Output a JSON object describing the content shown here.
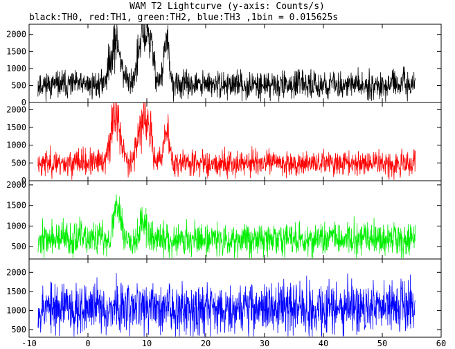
{
  "title": "WAM T2 Lightcurve (y-axis: Counts/s)",
  "subtitle": "black:TH0, red:TH1, green:TH2, blue:TH3 ,1bin = 0.015625s",
  "chart_data": [
    {
      "type": "line",
      "name": "TH0",
      "color": "#000000",
      "ylim": [
        0,
        2300
      ],
      "yticks": [
        0,
        500,
        1000,
        1500,
        2000
      ],
      "ytick_labels": [
        "0",
        "500",
        "1000",
        "1500",
        "2000"
      ],
      "x_range": [
        -8.5,
        55.6
      ],
      "baseline": 520,
      "noise": 190,
      "seed": 11,
      "bursts": [
        {
          "center": 4.7,
          "width": 0.9,
          "peak": 1250
        },
        {
          "center": 9.2,
          "width": 0.8,
          "peak": 1150
        },
        {
          "center": 10.5,
          "width": 0.7,
          "peak": 1050
        },
        {
          "center": 13.3,
          "width": 0.45,
          "peak": 1250
        }
      ]
    },
    {
      "type": "line",
      "name": "TH1",
      "color": "#ff0000",
      "ylim": [
        0,
        2200
      ],
      "yticks": [
        0,
        500,
        1000,
        1500,
        2000
      ],
      "ytick_labels": [
        "0",
        "500",
        "1000",
        "1500",
        "2000"
      ],
      "x_range": [
        -8.5,
        55.6
      ],
      "baseline": 500,
      "noise": 180,
      "seed": 23,
      "bursts": [
        {
          "center": 4.7,
          "width": 0.8,
          "peak": 1350
        },
        {
          "center": 9.0,
          "width": 0.7,
          "peak": 1000
        },
        {
          "center": 10.3,
          "width": 0.6,
          "peak": 850
        },
        {
          "center": 13.3,
          "width": 0.45,
          "peak": 1000
        }
      ]
    },
    {
      "type": "line",
      "name": "TH2",
      "color": "#00ee00",
      "ylim": [
        200,
        2100
      ],
      "yticks": [
        500,
        1000,
        1500,
        2000
      ],
      "ytick_labels": [
        "500",
        "1000",
        "1500",
        "2000"
      ],
      "x_range": [
        -8.5,
        55.6
      ],
      "baseline": 680,
      "noise": 200,
      "seed": 37,
      "bursts": [
        {
          "center": 5.0,
          "width": 0.55,
          "peak": 900
        },
        {
          "center": 9.3,
          "width": 0.6,
          "peak": 400
        }
      ]
    },
    {
      "type": "line",
      "name": "TH3",
      "color": "#0000ff",
      "ylim": [
        300,
        2350
      ],
      "yticks": [
        500,
        1000,
        1500,
        2000
      ],
      "ytick_labels": [
        "500",
        "1000",
        "1500",
        "2000"
      ],
      "x_range": [
        -8.5,
        55.6
      ],
      "baseline": 1080,
      "noise": 330,
      "seed": 53,
      "bursts": []
    }
  ],
  "xaxis": {
    "xlim": [
      -10,
      60
    ],
    "ticks": [
      -10,
      0,
      10,
      20,
      30,
      40,
      50,
      60
    ],
    "tick_labels": [
      "-10",
      "0",
      "10",
      "20",
      "30",
      "40",
      "50",
      "60"
    ]
  }
}
